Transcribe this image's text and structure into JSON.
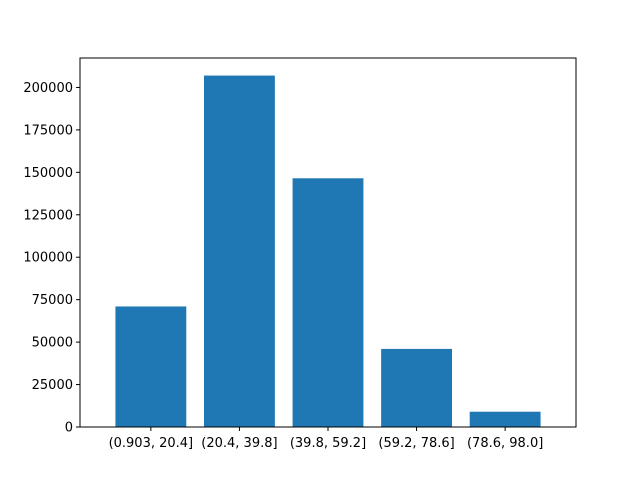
{
  "chart_data": {
    "type": "bar",
    "title": "",
    "xlabel": "",
    "ylabel": "",
    "categories": [
      "(0.903, 20.4]",
      "(20.4, 39.8]",
      "(39.8, 59.2]",
      "(59.2, 78.6]",
      "(78.6, 98.0]"
    ],
    "values": [
      71000,
      207000,
      146500,
      46000,
      9000
    ],
    "ylim": [
      0,
      217350
    ],
    "yticks": [
      0,
      25000,
      50000,
      75000,
      100000,
      125000,
      150000,
      175000,
      200000
    ],
    "ytick_labels": [
      "0",
      "25000",
      "50000",
      "75000",
      "100000",
      "125000",
      "150000",
      "175000",
      "200000"
    ],
    "grid": false,
    "legend": "none",
    "colors": {
      "bar": "#1f77b4",
      "axis": "#000000"
    }
  }
}
